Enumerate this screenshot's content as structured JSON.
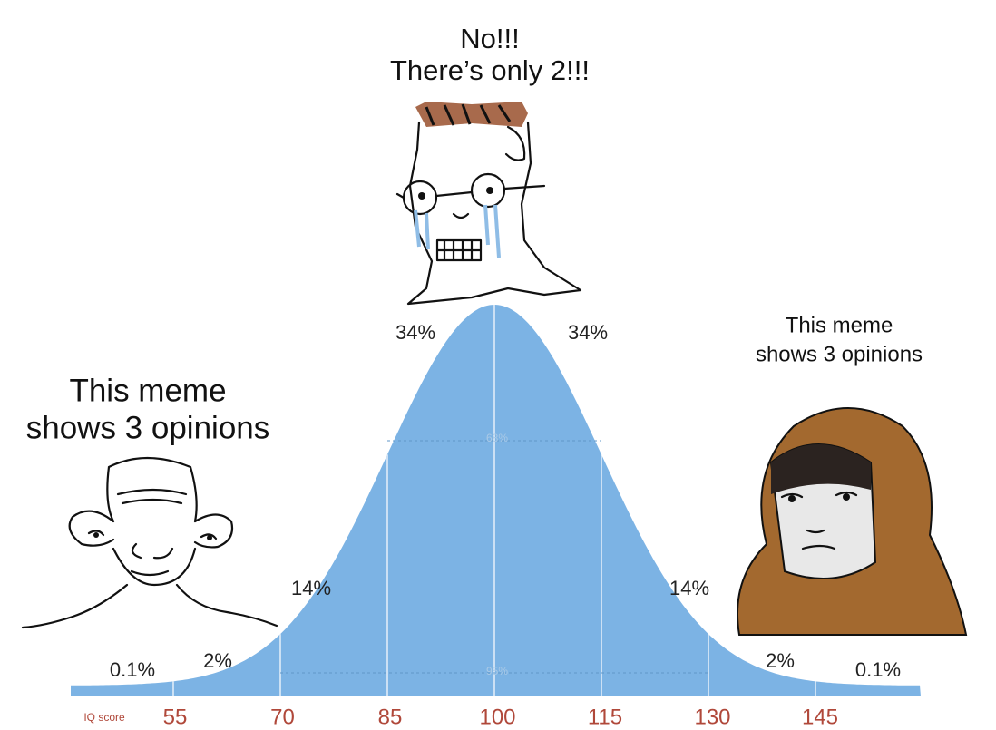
{
  "top_caption": [
    "No!!!",
    "There’s only 2!!!"
  ],
  "left_caption": [
    "This meme",
    "shows 3 opinions"
  ],
  "right_caption": [
    "This meme",
    "shows 3 opinions"
  ],
  "distribution": {
    "percent_labels": [
      "0.1%",
      "2%",
      "14%",
      "34%",
      "34%",
      "14%",
      "2%",
      "0.1%"
    ],
    "inner_labels": [
      "68%",
      "95%"
    ],
    "axis_title": "IQ score",
    "axis_labels": [
      55,
      70,
      85,
      100,
      115,
      130,
      145
    ]
  }
}
